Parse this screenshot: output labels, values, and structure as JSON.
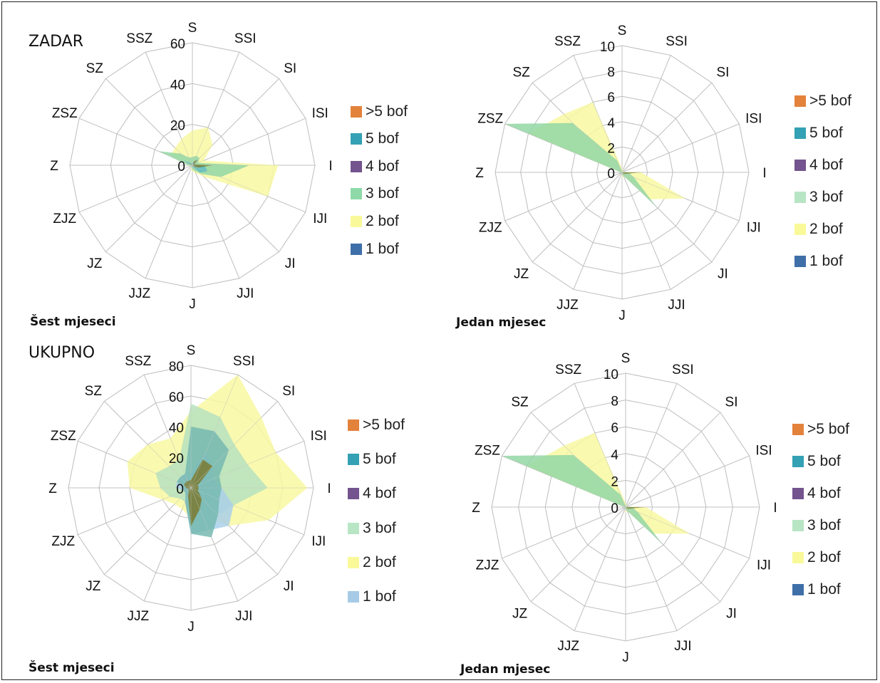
{
  "chart_data": [
    {
      "type": "radar",
      "heading": "ZADAR",
      "caption": "Šest mjeseci",
      "categories": [
        "S",
        "SSI",
        "SI",
        "ISI",
        "I",
        "IJI",
        "JI",
        "JJI",
        "J",
        "JJZ",
        "JZ",
        "ZJZ",
        "Z",
        "ZSZ",
        "SZ",
        "SSZ"
      ],
      "ticks": [
        "0",
        "20",
        "40",
        "60"
      ],
      "rmax": 60,
      "legend": [
        ">5 bof",
        "5 bof",
        "4 bof",
        "3 bof",
        "2 bof",
        "1 bof"
      ],
      "series": [
        {
          "name": "2 bof",
          "color": "#f8f8a2",
          "values": [
            17,
            20,
            14,
            6,
            42,
            40,
            8,
            4,
            3,
            2,
            1,
            1,
            2,
            12,
            12,
            14
          ]
        },
        {
          "name": "3 bof",
          "color": "#93d7a4",
          "values": [
            4,
            5,
            5,
            3,
            28,
            15,
            6,
            3,
            2,
            1,
            1,
            1,
            2,
            18,
            8,
            4
          ]
        },
        {
          "name": "5 bof",
          "color": "#5fbcc2",
          "values": [
            1,
            2,
            4,
            1,
            6,
            8,
            5,
            1,
            1,
            0,
            0,
            0,
            0,
            6,
            2,
            1
          ]
        },
        {
          "name": "4 bof",
          "color": "#7a7a30",
          "values": [
            0,
            2,
            4,
            1,
            10,
            3,
            1,
            0,
            0,
            0,
            0,
            0,
            0,
            2,
            1,
            0
          ]
        }
      ]
    },
    {
      "type": "radar",
      "heading": "",
      "caption": "Jedan mjesec",
      "categories": [
        "S",
        "SSI",
        "SI",
        "ISI",
        "I",
        "IJI",
        "JI",
        "JJI",
        "J",
        "JJZ",
        "JZ",
        "ZJZ",
        "Z",
        "ZSZ",
        "SZ",
        "SSZ"
      ],
      "ticks": [
        "0",
        "2",
        "4",
        "6",
        "8",
        "10"
      ],
      "rmax": 10,
      "legend": [
        ">5 bof",
        "5 bof",
        "4 bof",
        "3 bof",
        "2 bof",
        "1 bof"
      ],
      "series": [
        {
          "name": "2 bof",
          "color": "#f8f8a2",
          "values": [
            0.3,
            0.2,
            0.2,
            0.1,
            1.5,
            5.4,
            3.0,
            0.3,
            0.5,
            0.1,
            0.1,
            0.1,
            0.1,
            8.0,
            6.5,
            6.0
          ]
        },
        {
          "name": "3 bof",
          "color": "#93d7a4",
          "values": [
            0.1,
            0.1,
            0.1,
            0.1,
            0.5,
            1.0,
            3.8,
            0.3,
            0.2,
            0.1,
            0.1,
            0.1,
            0.1,
            10.0,
            5.5,
            1.0
          ]
        },
        {
          "name": "4 bof",
          "color": "#7a7a30",
          "values": [
            0,
            0,
            0,
            0,
            1.5,
            0.3,
            0.2,
            0,
            0,
            0,
            0,
            0,
            0,
            0,
            0,
            0
          ]
        }
      ]
    },
    {
      "type": "radar",
      "heading": "UKUPNO",
      "caption": "Šest mjeseci",
      "categories": [
        "S",
        "SSI",
        "SI",
        "ISI",
        "I",
        "IJI",
        "JI",
        "JJI",
        "J",
        "JJZ",
        "JZ",
        "ZJZ",
        "Z",
        "ZSZ",
        "SZ",
        "SSZ"
      ],
      "ticks": [
        "0",
        "20",
        "40",
        "60",
        "80"
      ],
      "rmax": 80,
      "legend": [
        ">5 bof",
        "5 bof",
        "4 bof",
        "3 bof",
        "2 bof",
        "1 bof"
      ],
      "series": [
        {
          "name": "2 bof",
          "color": "#f8f8a2",
          "values": [
            50,
            80,
            65,
            60,
            76,
            55,
            35,
            20,
            20,
            15,
            15,
            20,
            40,
            45,
            40,
            35
          ]
        },
        {
          "name": "3 bof",
          "color": "#b7e2be",
          "values": [
            55,
            50,
            40,
            40,
            50,
            30,
            25,
            30,
            25,
            10,
            10,
            15,
            20,
            25,
            20,
            20
          ]
        },
        {
          "name": "1 bof",
          "color": "#a9d0ea",
          "values": [
            10,
            25,
            20,
            15,
            20,
            30,
            35,
            30,
            30,
            10,
            5,
            5,
            10,
            10,
            10,
            10
          ]
        },
        {
          "name": "5 bof",
          "color": "#76b8b0",
          "values": [
            40,
            40,
            35,
            20,
            20,
            20,
            25,
            35,
            30,
            10,
            5,
            5,
            5,
            10,
            10,
            10
          ]
        },
        {
          "name": "4 bof",
          "color": "#7a7a30",
          "values": [
            5,
            20,
            20,
            5,
            5,
            5,
            10,
            15,
            25,
            5,
            2,
            2,
            3,
            5,
            5,
            5
          ]
        }
      ]
    },
    {
      "type": "radar",
      "heading": "",
      "caption": "Jedan mjesec",
      "categories": [
        "S",
        "SSI",
        "SI",
        "ISI",
        "I",
        "IJI",
        "JI",
        "JJI",
        "J",
        "JJZ",
        "JZ",
        "ZJZ",
        "Z",
        "ZSZ",
        "SZ",
        "SSZ"
      ],
      "ticks": [
        "0",
        "2",
        "4",
        "6",
        "8",
        "10"
      ],
      "rmax": 10,
      "legend": [
        ">5 bof",
        "5 bof",
        "4 bof",
        "3 bof",
        "2 bof",
        "1 bof"
      ],
      "series": [
        {
          "name": "2 bof",
          "color": "#f8f8a2",
          "values": [
            0.3,
            0.2,
            0.2,
            0.1,
            1.5,
            5.2,
            2.8,
            0.3,
            0.5,
            0.1,
            0.1,
            0.1,
            0.1,
            8.0,
            6.5,
            6.0
          ]
        },
        {
          "name": "3 bof",
          "color": "#93d7a4",
          "values": [
            0.1,
            0.1,
            0.1,
            0.1,
            0.5,
            1.0,
            3.8,
            0.3,
            0.2,
            0.1,
            0.1,
            0.1,
            0.1,
            10.0,
            5.5,
            1.0
          ]
        },
        {
          "name": "4 bof",
          "color": "#7a7a30",
          "values": [
            0,
            0,
            0,
            0,
            1.5,
            0.3,
            0.2,
            0,
            0,
            0,
            0,
            0,
            0,
            0,
            0,
            0
          ]
        }
      ]
    }
  ],
  "legend_colors": {
    ">5 bof": "#e3823b",
    "5 bof": "#34a1b4",
    "4 bof": "#73548e",
    "3 bof_a": "#8ed9a8",
    "3 bof_b": "#b8e5c4",
    "2 bof": "#f9f99a",
    "1 bof_a": "#3f6fa8",
    "1 bof_b": "#a7cbe6"
  }
}
